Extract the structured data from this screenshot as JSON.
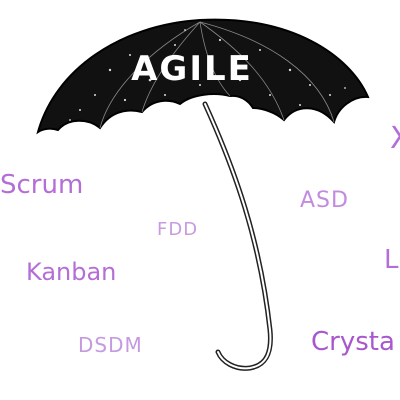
{
  "umbrella": {
    "title": "AGILE",
    "canopy_color": "#111111",
    "handle_color": "#222222"
  },
  "methods": {
    "scrum": "Scrum",
    "kanban": "Kanban",
    "fdd": "FDD",
    "dsdm": "DSDM",
    "asd": "ASD",
    "crystal": "Crysta",
    "edge_right_1": "L",
    "edge_right_2": "X"
  },
  "colors": {
    "label": "#b168d0"
  }
}
